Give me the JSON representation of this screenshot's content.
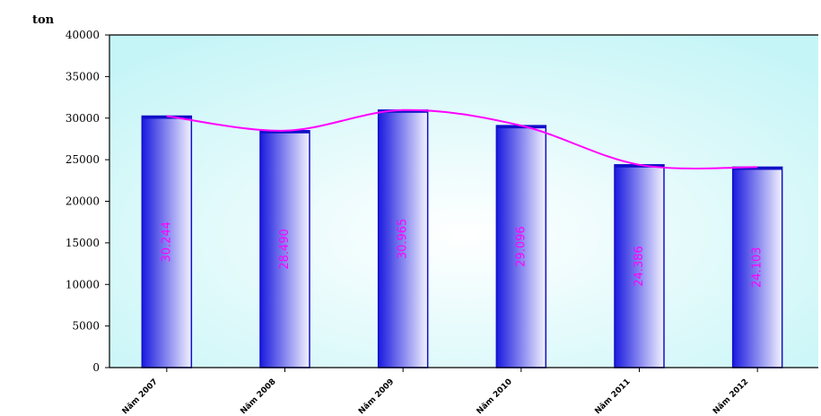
{
  "chart_data": {
    "type": "bar",
    "unit_label": "ton",
    "categories": [
      "Năm 2007",
      "Năm 2008",
      "Năm 2009",
      "Năm 2010",
      "Năm 2011",
      "Năm 2012"
    ],
    "values": [
      30244,
      28490,
      30965,
      29096,
      24386,
      24103
    ],
    "value_labels": [
      "30.244",
      "28.490",
      "30.965",
      "29.096",
      "24.386",
      "24.103"
    ],
    "y_ticks": [
      0,
      5000,
      10000,
      15000,
      20000,
      25000,
      30000,
      35000,
      40000
    ],
    "ylim": [
      0,
      40000
    ],
    "has_trend_line": true,
    "legend": "none",
    "grid": false,
    "colors": {
      "bar_dark": "#1a1ae0",
      "bar_light": "#f2f2ff",
      "bar_edge": "#1010c8",
      "trend_line": "#ff00ff",
      "value_label": "#ff00ff",
      "plot_bg_center": "#ffffff",
      "plot_bg_edge": "#c6f5f7",
      "axis": "#000000"
    }
  }
}
